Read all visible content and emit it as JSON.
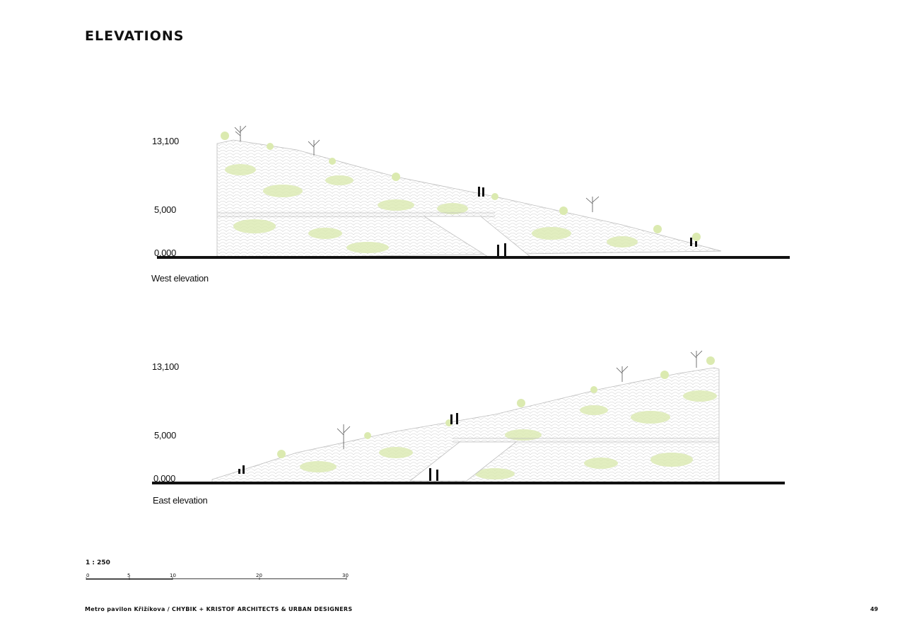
{
  "page": {
    "title": "ELEVATIONS",
    "footer": "Metro pavilon Křižíkova / CHYBIK + KRISTOF ARCHITECTS & URBAN DESIGNERS",
    "page_number": "49"
  },
  "elevations": [
    {
      "caption": "West elevation",
      "levels": [
        "13,100",
        "5,000",
        "0,000"
      ]
    },
    {
      "caption": "East elevation",
      "levels": [
        "13,100",
        "5,000",
        "0,000"
      ]
    }
  ],
  "scale": {
    "ratio": "1 : 250",
    "ticks": [
      "0",
      "5",
      "10",
      "20",
      "30"
    ]
  },
  "colors": {
    "ground": "#111111",
    "mesh": "#cfcfcf",
    "greenery": "#dbeab0",
    "figures": "#111111"
  }
}
